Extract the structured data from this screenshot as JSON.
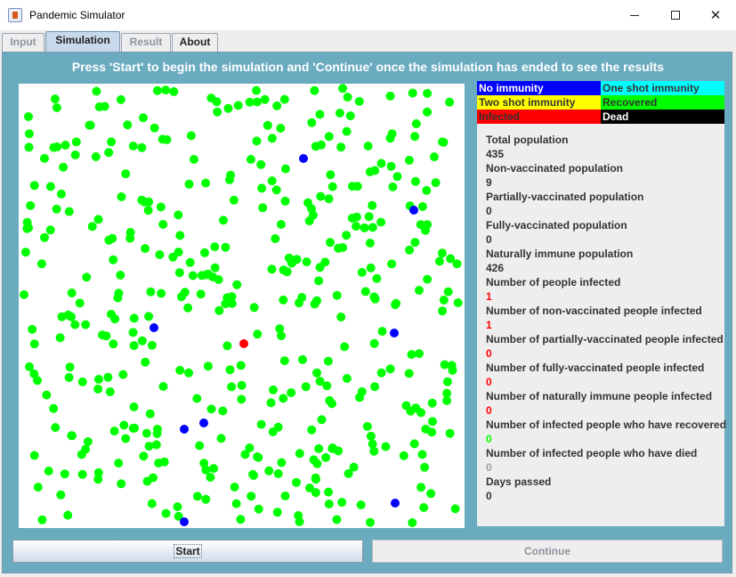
{
  "window": {
    "title": "Pandemic Simulator",
    "minimize_glyph": "",
    "maximize_glyph": "",
    "close_glyph": "✕"
  },
  "tabs": [
    {
      "label": "Input",
      "state": "disabled"
    },
    {
      "label": "Simulation",
      "state": "active"
    },
    {
      "label": "Result",
      "state": "disabled"
    },
    {
      "label": "About",
      "state": "normal"
    }
  ],
  "instructions": "Press 'Start' to begin the simulation and 'Continue' once the simulation has ended to see the results",
  "legend": [
    {
      "label": "No immunity",
      "bg": "#0000ff",
      "fg": "#ffffff"
    },
    {
      "label": "One shot immunity",
      "bg": "#00ffff",
      "fg": "#333333"
    },
    {
      "label": "Two shot immunity",
      "bg": "#ffff00",
      "fg": "#333333"
    },
    {
      "label": "Recovered",
      "bg": "#00ff00",
      "fg": "#333333"
    },
    {
      "label": "Infected",
      "bg": "#ff0000",
      "fg": "#333333"
    },
    {
      "label": "Dead",
      "bg": "#000000",
      "fg": "#ffffff"
    }
  ],
  "stats": [
    {
      "label": "Total population",
      "value": "435",
      "color": "#333333"
    },
    {
      "label": "Non-vaccinated population",
      "value": "9",
      "color": "#333333"
    },
    {
      "label": "Partially-vaccinated population",
      "value": "0",
      "color": "#333333"
    },
    {
      "label": "Fully-vaccinated population",
      "value": "0",
      "color": "#333333"
    },
    {
      "label": "Naturally immune population",
      "value": "426",
      "color": "#333333"
    },
    {
      "label": "Number of people infected",
      "value": "1",
      "color": "#ff0000"
    },
    {
      "label": "Number of non-vaccinated people infected",
      "value": "1",
      "color": "#ff0000"
    },
    {
      "label": "Number of partially-vaccinated people infected",
      "value": "0",
      "color": "#ff0000"
    },
    {
      "label": "Number of fully-vaccinated people infected",
      "value": "0",
      "color": "#ff0000"
    },
    {
      "label": "Number of naturally immune people infected",
      "value": "0",
      "color": "#ff0000"
    },
    {
      "label": "Number of infected people who have recovered",
      "value": "0",
      "color": "#00ff00"
    },
    {
      "label": "Number of infected people who have died",
      "value": "0",
      "color": "#a0a0a0"
    },
    {
      "label": "Days passed",
      "value": "0",
      "color": "#333333"
    }
  ],
  "buttons": {
    "start_label": "Start",
    "continue_label": "Continue"
  },
  "colors": {
    "panel_bg": "#6aabc0",
    "recovered": "#00ff00",
    "no_immunity": "#0000ff",
    "infected": "#ff0000"
  }
}
